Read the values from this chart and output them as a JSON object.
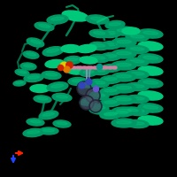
{
  "background_color": "#000000",
  "fig_width": 2.0,
  "fig_height": 2.0,
  "dpi": 100,
  "colors": {
    "green_dark": "#007a55",
    "green_mid": "#009966",
    "green_light": "#00c87a",
    "green_bright": "#00b878"
  },
  "axis_red": "#ff2200",
  "axis_blue": "#2244ff",
  "axis_ox": 0.075,
  "axis_oy": 0.135,
  "axis_rdx": 0.075,
  "axis_rdy": 0.0,
  "axis_bdx": 0.0,
  "axis_bdy": -0.075,
  "ligand_pink": "#d080a0",
  "ligand_lavender": "#a090c0",
  "ligand_dark": "#445566",
  "ligand_darkblue": "#334488",
  "atom_yellow": "#ddcc00",
  "atom_red": "#cc2200",
  "atom_orange": "#dd7700",
  "atom_blue": "#3344bb",
  "atom_cyan": "#009988"
}
